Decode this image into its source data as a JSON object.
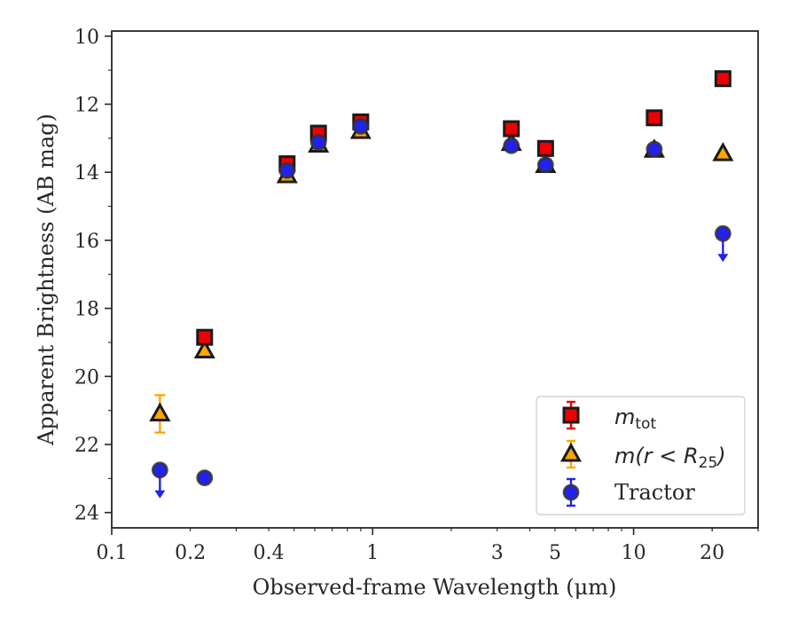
{
  "chart_data": {
    "type": "scatter",
    "xlabel": "Observed-frame Wavelength (μm)",
    "ylabel": "Apparent Brightness (AB mag)",
    "xscale": "log",
    "xlim": [
      0.1,
      30
    ],
    "ylim": [
      24.45,
      9.85
    ],
    "y_inverted": true,
    "x_ticks": [
      {
        "value": 0.1,
        "label": "0.1"
      },
      {
        "value": 0.2,
        "label": "0.2"
      },
      {
        "value": 0.4,
        "label": "0.4"
      },
      {
        "value": 1,
        "label": "1"
      },
      {
        "value": 3,
        "label": "3"
      },
      {
        "value": 5,
        "label": "5"
      },
      {
        "value": 10,
        "label": "10"
      },
      {
        "value": 20,
        "label": "20"
      }
    ],
    "y_ticks": [
      10,
      12,
      14,
      16,
      18,
      20,
      22,
      24
    ],
    "legend_position": "lower right",
    "series": [
      {
        "name": "m_tot",
        "legend_main": "m",
        "legend_sub": "tot",
        "marker": "square",
        "color": "#ee0000",
        "edge_color": "#1a1a1a",
        "points": [
          {
            "x": 0.227,
            "y": 18.85
          },
          {
            "x": 0.47,
            "y": 13.75
          },
          {
            "x": 0.62,
            "y": 12.85
          },
          {
            "x": 0.9,
            "y": 12.52
          },
          {
            "x": 3.4,
            "y": 12.72
          },
          {
            "x": 4.6,
            "y": 13.3
          },
          {
            "x": 12.0,
            "y": 12.4
          },
          {
            "x": 22.0,
            "y": 11.25
          }
        ]
      },
      {
        "name": "m(r < R25)",
        "legend_main": "m(r < R",
        "legend_sub": "25",
        "legend_end": ")",
        "marker": "triangle",
        "color": "#ffa500",
        "edge_color": "#1a1a1a",
        "points": [
          {
            "x": 0.153,
            "y": 21.1,
            "yerr": 0.55
          },
          {
            "x": 0.227,
            "y": 19.25
          },
          {
            "x": 0.47,
            "y": 14.1
          },
          {
            "x": 0.62,
            "y": 13.2
          },
          {
            "x": 0.9,
            "y": 12.8
          },
          {
            "x": 3.4,
            "y": 13.15
          },
          {
            "x": 4.6,
            "y": 13.8
          },
          {
            "x": 12.0,
            "y": 13.35
          },
          {
            "x": 22.0,
            "y": 13.45
          }
        ]
      },
      {
        "name": "Tractor",
        "marker": "circle",
        "color": "#2222ee",
        "edge_color": "#333333",
        "points": [
          {
            "x": 0.153,
            "y": 22.75,
            "upper_limit": true
          },
          {
            "x": 0.227,
            "y": 22.98
          },
          {
            "x": 0.47,
            "y": 13.95
          },
          {
            "x": 0.62,
            "y": 13.12
          },
          {
            "x": 0.9,
            "y": 12.65
          },
          {
            "x": 3.4,
            "y": 13.22
          },
          {
            "x": 4.6,
            "y": 13.78
          },
          {
            "x": 12.0,
            "y": 13.32
          },
          {
            "x": 22.0,
            "y": 15.8,
            "upper_limit": true
          }
        ]
      }
    ]
  }
}
